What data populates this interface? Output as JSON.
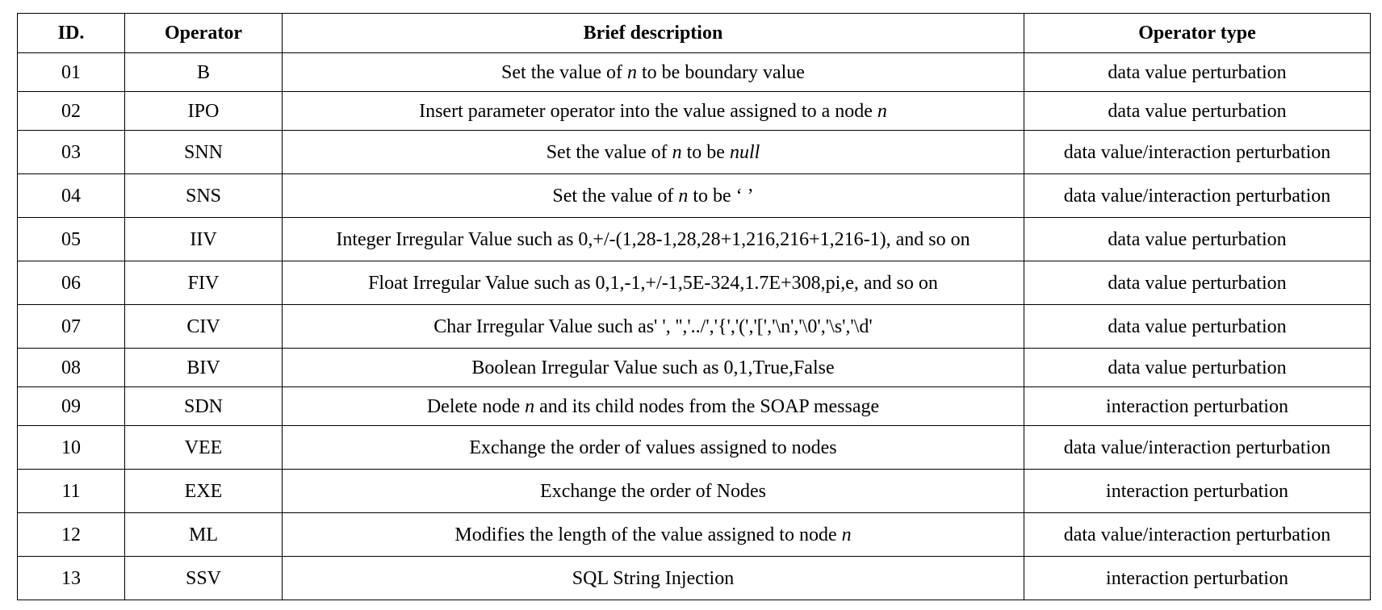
{
  "table": {
    "headers": {
      "id": "ID.",
      "operator": "Operator",
      "description": "Brief description",
      "type": "Operator type"
    },
    "rows": [
      {
        "id": "01",
        "operator": "B",
        "desc_pre": "Set the value of ",
        "desc_var": "n",
        "desc_post": " to be boundary value",
        "type": "data value perturbation"
      },
      {
        "id": "02",
        "operator": "IPO",
        "desc_pre": "Insert parameter operator into the value assigned to a node ",
        "desc_var": "n",
        "desc_post": "",
        "type": "data value perturbation"
      },
      {
        "id": "03",
        "operator": "SNN",
        "desc_pre": "Set the value of ",
        "desc_var": "n",
        "desc_mid": " to be ",
        "desc_var2": "null",
        "desc_post": "",
        "type": "data value/interaction perturbation"
      },
      {
        "id": "04",
        "operator": "SNS",
        "desc_pre": "Set the value of ",
        "desc_var": "n",
        "desc_post": " to be ‘ ’",
        "type": "data value/interaction perturbation"
      },
      {
        "id": "05",
        "operator": "IIV",
        "desc_pre": "Integer Irregular Value such as 0,+/-(1,28-1,28,28+1,216,216+1,216-1), and so on",
        "type": "data value perturbation"
      },
      {
        "id": "06",
        "operator": "FIV",
        "desc_pre": "Float Irregular Value such as 0,1,-1,+/-1,5E-324,1.7E+308,pi,e, and so on",
        "type": "data value perturbation"
      },
      {
        "id": "07",
        "operator": "CIV",
        "desc_pre": "Char Irregular Value such as' ', '','../','{','(','[','\\n','\\0','\\s','\\d'",
        "type": "data value perturbation"
      },
      {
        "id": "08",
        "operator": "BIV",
        "desc_pre": "Boolean Irregular Value such as 0,1,True,False",
        "type": "data value perturbation"
      },
      {
        "id": "09",
        "operator": "SDN",
        "desc_pre": "Delete node ",
        "desc_var": "n",
        "desc_post": " and its child nodes from the SOAP message",
        "type": "interaction perturbation"
      },
      {
        "id": "10",
        "operator": "VEE",
        "desc_pre": "Exchange the order of values assigned to nodes",
        "type": "data value/interaction perturbation"
      },
      {
        "id": "11",
        "operator": "EXE",
        "desc_pre": "Exchange the order of Nodes",
        "type": "interaction perturbation"
      },
      {
        "id": "12",
        "operator": "ML",
        "desc_pre": "Modifies the length of the value assigned to node ",
        "desc_var": "n",
        "desc_post": "",
        "type": "data value/interaction perturbation"
      },
      {
        "id": "13",
        "operator": "SSV",
        "desc_pre": "SQL String Injection",
        "type": "interaction perturbation"
      }
    ]
  }
}
